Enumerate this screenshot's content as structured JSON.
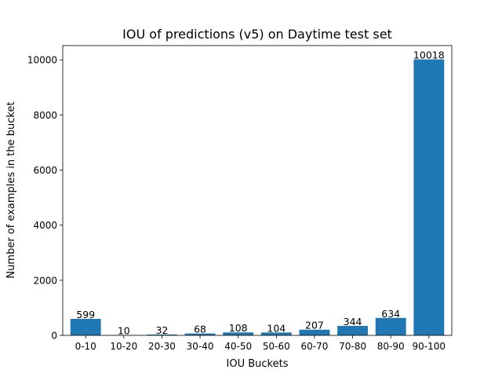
{
  "chart_data": {
    "type": "bar",
    "title": "IOU of predictions (v5) on Daytime test set",
    "xlabel": "IOU Buckets",
    "ylabel": "Number of examples in the bucket",
    "categories": [
      "0-10",
      "10-20",
      "20-30",
      "30-40",
      "40-50",
      "50-60",
      "60-70",
      "70-80",
      "80-90",
      "90-100"
    ],
    "values": [
      599,
      10,
      32,
      68,
      108,
      104,
      207,
      344,
      634,
      10018
    ],
    "data_labels": [
      "599",
      "10",
      "32",
      "68",
      "108",
      "104",
      "207",
      "344",
      "634",
      "10018"
    ],
    "yticks": [
      0,
      2000,
      4000,
      6000,
      8000,
      10000
    ],
    "ylim": [
      0,
      10520
    ],
    "grid": false,
    "bar_color": "#1f77b4"
  }
}
